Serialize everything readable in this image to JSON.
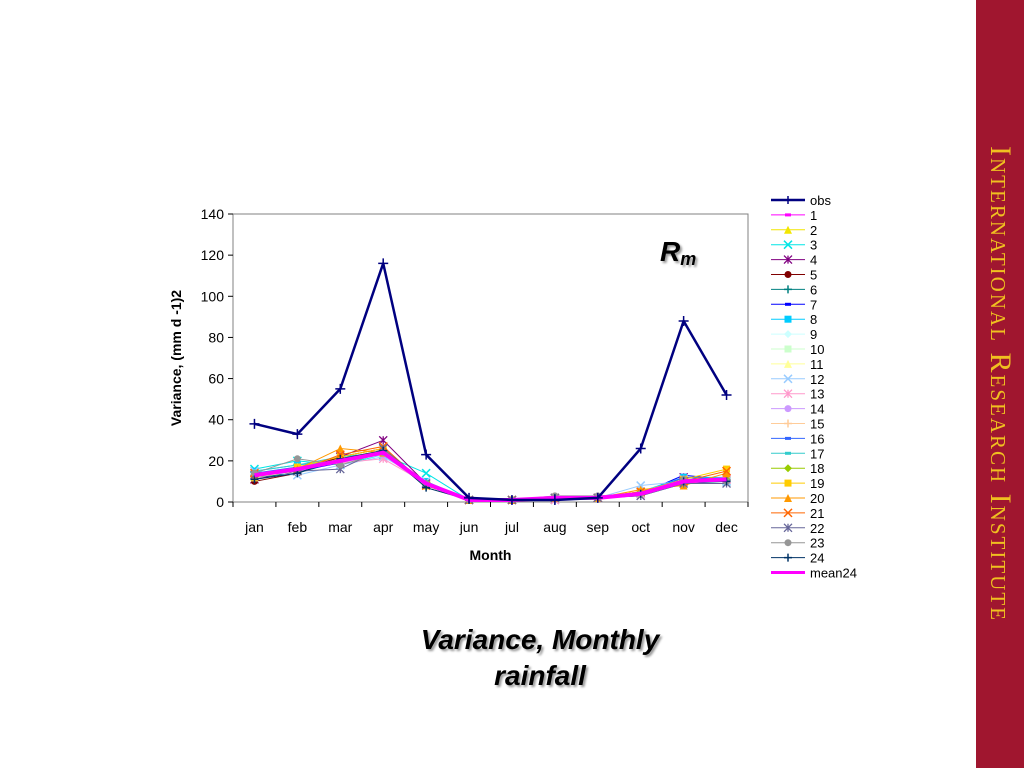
{
  "sidebar": {
    "text": "International Research Institute",
    "bg_color": "#a0162f",
    "text_color": "#f0c020"
  },
  "slide_title": "Variance, Monthly rainfall",
  "chart_label": {
    "main": "R",
    "sub": "m"
  },
  "chart_data": {
    "type": "line",
    "title": "",
    "xlabel": "Month",
    "ylabel": "Variance, (mm d -1)2",
    "ylim": [
      0,
      140
    ],
    "yticks": [
      0,
      20,
      40,
      60,
      80,
      100,
      120,
      140
    ],
    "categories": [
      "jan",
      "feb",
      "mar",
      "apr",
      "may",
      "jun",
      "jul",
      "aug",
      "sep",
      "oct",
      "nov",
      "dec"
    ],
    "grid": false,
    "legend_position": "right",
    "series": [
      {
        "name": "obs",
        "color": "#000080",
        "marker": "plus",
        "width": 2.5,
        "values": [
          38,
          33,
          55,
          116,
          23,
          2,
          1,
          1,
          2,
          26,
          88,
          52
        ]
      },
      {
        "name": "1",
        "color": "#ff00ff",
        "marker": "dash",
        "width": 1,
        "values": [
          14,
          16,
          20,
          24,
          9,
          1,
          1,
          1,
          2,
          4,
          10,
          11
        ]
      },
      {
        "name": "2",
        "color": "#f2e600",
        "marker": "triangle",
        "width": 1,
        "values": [
          13,
          17,
          21,
          25,
          8,
          1,
          1,
          2,
          2,
          5,
          9,
          12
        ]
      },
      {
        "name": "3",
        "color": "#00e5e5",
        "marker": "x",
        "width": 1,
        "values": [
          16,
          20,
          18,
          23,
          14,
          1,
          1,
          2,
          2,
          4,
          11,
          10
        ]
      },
      {
        "name": "4",
        "color": "#800080",
        "marker": "star",
        "width": 1,
        "values": [
          11,
          15,
          22,
          30,
          9,
          1,
          1,
          1,
          2,
          3,
          12,
          11
        ]
      },
      {
        "name": "5",
        "color": "#800000",
        "marker": "circle",
        "width": 1,
        "values": [
          10,
          14,
          22,
          26,
          8,
          1,
          1,
          2,
          2,
          4,
          10,
          12
        ]
      },
      {
        "name": "6",
        "color": "#008080",
        "marker": "plus",
        "width": 1,
        "values": [
          12,
          14,
          20,
          24,
          8,
          1,
          1,
          1,
          2,
          3,
          9,
          10
        ]
      },
      {
        "name": "7",
        "color": "#0000ff",
        "marker": "dash",
        "width": 1,
        "values": [
          13,
          15,
          19,
          25,
          9,
          1,
          1,
          1,
          2,
          4,
          13,
          11
        ]
      },
      {
        "name": "8",
        "color": "#00ccff",
        "marker": "square",
        "width": 1,
        "values": [
          15,
          18,
          20,
          24,
          10,
          1,
          1,
          2,
          2,
          5,
          12,
          12
        ]
      },
      {
        "name": "9",
        "color": "#ccffff",
        "marker": "diamond",
        "width": 1,
        "values": [
          14,
          17,
          19,
          23,
          9,
          1,
          1,
          2,
          2,
          4,
          10,
          10
        ]
      },
      {
        "name": "10",
        "color": "#ccffcc",
        "marker": "square",
        "width": 1,
        "values": [
          13,
          16,
          21,
          25,
          8,
          1,
          1,
          2,
          2,
          5,
          11,
          11
        ]
      },
      {
        "name": "11",
        "color": "#ffff99",
        "marker": "triangle",
        "width": 1,
        "values": [
          12,
          15,
          20,
          24,
          9,
          1,
          1,
          2,
          2,
          4,
          9,
          12
        ]
      },
      {
        "name": "12",
        "color": "#99ccff",
        "marker": "x",
        "width": 1,
        "values": [
          15,
          13,
          18,
          22,
          10,
          1,
          1,
          2,
          2,
          8,
          10,
          10
        ]
      },
      {
        "name": "13",
        "color": "#ff99cc",
        "marker": "star",
        "width": 1,
        "values": [
          14,
          16,
          19,
          21,
          9,
          1,
          1,
          1,
          2,
          4,
          11,
          11
        ]
      },
      {
        "name": "14",
        "color": "#cc99ff",
        "marker": "circle",
        "width": 1,
        "values": [
          13,
          15,
          20,
          23,
          8,
          1,
          1,
          2,
          2,
          4,
          10,
          12
        ]
      },
      {
        "name": "15",
        "color": "#ffcc99",
        "marker": "plus",
        "width": 1,
        "values": [
          12,
          16,
          21,
          24,
          9,
          1,
          1,
          2,
          2,
          5,
          9,
          11
        ]
      },
      {
        "name": "16",
        "color": "#3366ff",
        "marker": "dash",
        "width": 1,
        "values": [
          14,
          17,
          20,
          25,
          9,
          1,
          1,
          1,
          2,
          4,
          12,
          11
        ]
      },
      {
        "name": "17",
        "color": "#33cccc",
        "marker": "dash",
        "width": 1,
        "values": [
          15,
          18,
          22,
          24,
          10,
          1,
          1,
          2,
          2,
          4,
          11,
          10
        ]
      },
      {
        "name": "18",
        "color": "#99cc00",
        "marker": "diamond",
        "width": 1,
        "values": [
          13,
          16,
          21,
          25,
          9,
          1,
          1,
          2,
          2,
          5,
          10,
          11
        ]
      },
      {
        "name": "19",
        "color": "#ffcc00",
        "marker": "square",
        "width": 1,
        "values": [
          12,
          17,
          22,
          26,
          8,
          1,
          1,
          2,
          2,
          5,
          11,
          16
        ]
      },
      {
        "name": "20",
        "color": "#ff9900",
        "marker": "triangle",
        "width": 1,
        "values": [
          13,
          16,
          26,
          24,
          9,
          1,
          1,
          2,
          2,
          6,
          8,
          14
        ]
      },
      {
        "name": "21",
        "color": "#ff6600",
        "marker": "x",
        "width": 1,
        "values": [
          14,
          15,
          23,
          27,
          8,
          1,
          1,
          2,
          2,
          5,
          10,
          15
        ]
      },
      {
        "name": "22",
        "color": "#666699",
        "marker": "star",
        "width": 1,
        "values": [
          13,
          15,
          16,
          26,
          9,
          1,
          1,
          2,
          2,
          3,
          9,
          9
        ]
      },
      {
        "name": "23",
        "color": "#969696",
        "marker": "circle",
        "width": 1,
        "values": [
          14,
          21,
          18,
          24,
          9,
          1,
          1,
          3,
          3,
          4,
          11,
          10
        ]
      },
      {
        "name": "24",
        "color": "#003366",
        "marker": "plus",
        "width": 1,
        "values": [
          11,
          14,
          21,
          25,
          7,
          1,
          1,
          2,
          2,
          4,
          10,
          10
        ]
      },
      {
        "name": "mean24",
        "color": "#ff00ff",
        "marker": "none",
        "width": 4,
        "values": [
          13,
          16,
          20,
          24,
          9,
          1,
          1,
          2,
          2,
          4,
          10,
          11
        ]
      }
    ]
  }
}
